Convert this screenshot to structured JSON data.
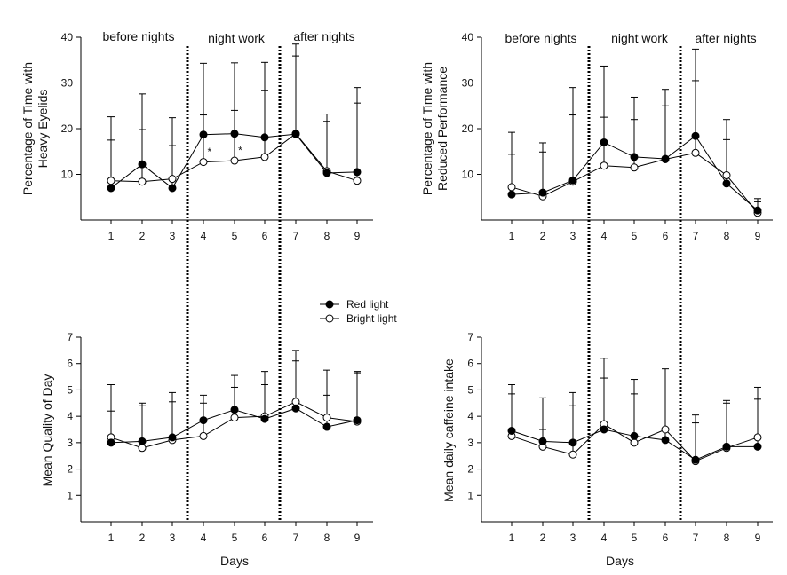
{
  "legend": {
    "red": "Red light",
    "bright": "Bright light"
  },
  "phases": [
    "before nights",
    "night work",
    "after nights"
  ],
  "x_axis_label": "Days",
  "colors": {
    "red_marker": "#000000",
    "bright_marker": "#ffffff",
    "line": "#000000"
  },
  "chart_data": [
    {
      "type": "line",
      "id": "heavy-eyelids",
      "ylabel_lines": [
        "Percentage of Time with",
        "Heavy Eyelids"
      ],
      "xlabel": "",
      "x": [
        1,
        2,
        3,
        4,
        5,
        6,
        7,
        8,
        9
      ],
      "ylim": [
        0,
        40
      ],
      "yticks": [
        10,
        20,
        30,
        40
      ],
      "series": [
        {
          "name": "Red light",
          "values": [
            7.0,
            12.2,
            7.0,
            18.7,
            18.9,
            18.1,
            18.8,
            10.3,
            10.5
          ],
          "err_upper": [
            17.5,
            27.6,
            22.4,
            34.3,
            34.4,
            34.5,
            38.5,
            21.6,
            29.0
          ]
        },
        {
          "name": "Bright light",
          "values": [
            8.6,
            8.4,
            9.0,
            12.7,
            13.0,
            13.8,
            18.9,
            10.7,
            8.6
          ],
          "err_upper": [
            22.6,
            19.8,
            16.3,
            23.0,
            24.0,
            28.4,
            35.9,
            23.2,
            25.6
          ]
        }
      ],
      "annotations": [
        {
          "x": 4.2,
          "y": 14.2,
          "text": "*"
        },
        {
          "x": 5.2,
          "y": 14.5,
          "text": "*"
        }
      ]
    },
    {
      "type": "line",
      "id": "reduced-performance",
      "ylabel_lines": [
        "Percentage of Time with",
        "Reduced Performance"
      ],
      "xlabel": "",
      "x": [
        1,
        2,
        3,
        4,
        5,
        6,
        7,
        8,
        9
      ],
      "ylim": [
        0,
        40
      ],
      "yticks": [
        10,
        20,
        30,
        40
      ],
      "series": [
        {
          "name": "Red light",
          "values": [
            5.6,
            6.0,
            8.7,
            17.0,
            13.8,
            13.4,
            18.4,
            8.0,
            2.1
          ],
          "err_upper": [
            14.4,
            14.9,
            29.0,
            33.7,
            22.0,
            25.0,
            37.4,
            17.6,
            4.7
          ]
        },
        {
          "name": "Bright light",
          "values": [
            7.2,
            5.2,
            8.4,
            11.9,
            11.5,
            13.3,
            14.7,
            9.8,
            1.6
          ],
          "err_upper": [
            19.2,
            16.9,
            23.0,
            22.5,
            26.9,
            28.6,
            30.5,
            22.0,
            4.0
          ]
        }
      ]
    },
    {
      "type": "line",
      "id": "quality-of-day",
      "ylabel_lines": [
        "Mean Quality of Day"
      ],
      "xlabel": "Days",
      "x": [
        1,
        2,
        3,
        4,
        5,
        6,
        7,
        8,
        9
      ],
      "ylim": [
        0,
        7
      ],
      "yticks": [
        1,
        2,
        3,
        4,
        5,
        6,
        7
      ],
      "series": [
        {
          "name": "Red light",
          "values": [
            3.0,
            3.05,
            3.2,
            3.85,
            4.25,
            3.9,
            4.3,
            3.6,
            3.85
          ],
          "err_upper": [
            4.2,
            4.4,
            4.55,
            4.8,
            5.55,
            5.2,
            6.1,
            4.8,
            5.7
          ]
        },
        {
          "name": "Bright light",
          "values": [
            3.2,
            2.8,
            3.1,
            3.25,
            3.95,
            4.0,
            4.55,
            3.95,
            3.8
          ],
          "err_upper": [
            5.2,
            4.5,
            4.9,
            4.5,
            5.1,
            5.7,
            6.5,
            5.75,
            5.65
          ]
        }
      ]
    },
    {
      "type": "line",
      "id": "caffeine-intake",
      "ylabel_lines": [
        "Mean daily caffeine intake"
      ],
      "xlabel": "Days",
      "x": [
        1,
        2,
        3,
        4,
        5,
        6,
        7,
        8,
        9
      ],
      "ylim": [
        0,
        7
      ],
      "yticks": [
        1,
        2,
        3,
        4,
        5,
        6,
        7
      ],
      "series": [
        {
          "name": "Red light",
          "values": [
            3.45,
            3.05,
            3.0,
            3.5,
            3.25,
            3.1,
            2.35,
            2.85,
            2.85
          ],
          "err_upper": [
            4.85,
            4.7,
            4.4,
            5.45,
            4.85,
            5.3,
            3.75,
            4.5,
            4.65
          ]
        },
        {
          "name": "Bright light",
          "values": [
            3.25,
            2.85,
            2.55,
            3.7,
            3.0,
            3.5,
            2.3,
            2.8,
            3.2
          ],
          "err_upper": [
            5.2,
            3.5,
            4.9,
            6.2,
            5.4,
            5.8,
            4.05,
            4.6,
            5.1
          ]
        }
      ]
    }
  ]
}
